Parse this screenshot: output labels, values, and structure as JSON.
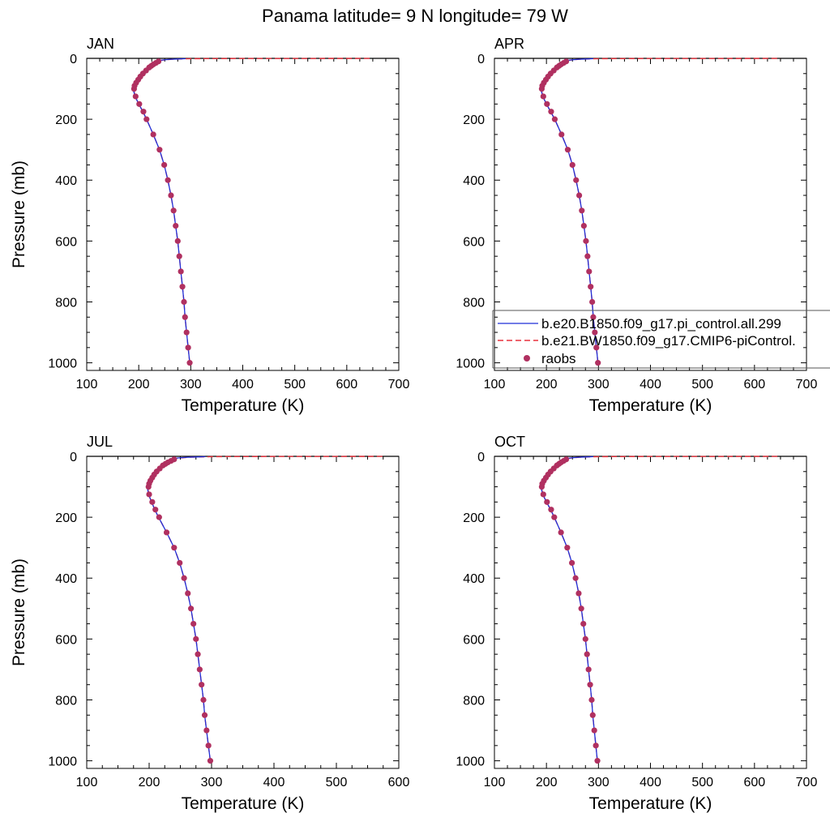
{
  "figure": {
    "title": "Panama  latitude= 9 N longitude= 79 W",
    "colors": {
      "model1": "#1f2fd8",
      "model2": "#e8303c",
      "raobs": "#b03060",
      "axis": "#000000"
    }
  },
  "legend": {
    "entries": [
      {
        "label": "b.e20.B1850.f09_g17.pi_control.all.299",
        "style": "solid-line",
        "color": "#1f2fd8"
      },
      {
        "label": "b.e21.BW1850.f09_g17.CMIP6-piControl.",
        "style": "dashed-line",
        "color": "#e8303c"
      },
      {
        "label": "raobs",
        "style": "marker",
        "color": "#b03060"
      }
    ]
  },
  "chart_data": [
    {
      "type": "line",
      "panel": "JAN",
      "title": "JAN",
      "xlabel": "Temperature (K)",
      "ylabel": "Pressure (mb)",
      "xlim": [
        100,
        700
      ],
      "ylim": [
        1025,
        0
      ],
      "xticks": [
        100,
        200,
        300,
        400,
        500,
        600,
        700
      ],
      "yticks": [
        0,
        200,
        400,
        600,
        800,
        1000
      ],
      "series": [
        {
          "name": "b.e20.B1850.f09_g17.pi_control.all.299",
          "pressure": [
            1000,
            950,
            900,
            850,
            800,
            750,
            700,
            650,
            600,
            550,
            500,
            450,
            400,
            350,
            300,
            250,
            200,
            175,
            150,
            125,
            100,
            90,
            80,
            70,
            60,
            50,
            40,
            30,
            20,
            10,
            7,
            5,
            3,
            2,
            1
          ],
          "temperature": [
            298,
            295,
            292,
            289,
            287,
            284,
            281,
            278,
            275,
            271,
            267,
            262,
            256,
            249,
            240,
            228,
            215,
            208,
            200,
            193,
            189,
            190,
            193,
            197,
            202,
            207,
            213,
            219,
            226,
            235,
            240,
            248,
            262,
            275,
            290
          ]
        },
        {
          "name": "b.e21.BW1850.f09_g17.CMIP6-piControl.",
          "pressure": [
            1000,
            950,
            900,
            850,
            800,
            750,
            700,
            650,
            600,
            550,
            500,
            450,
            400,
            350,
            300,
            250,
            200,
            175,
            150,
            125,
            100,
            90,
            80,
            70,
            60,
            50,
            40,
            30,
            20,
            10,
            7,
            5,
            3,
            2,
            1,
            0.5,
            0.2
          ],
          "temperature": [
            298,
            295,
            292,
            289,
            287,
            284,
            281,
            278,
            275,
            271,
            267,
            262,
            256,
            249,
            240,
            228,
            215,
            208,
            200,
            193,
            190,
            191,
            194,
            198,
            203,
            208,
            214,
            220,
            227,
            236,
            242,
            250,
            265,
            280,
            300,
            400,
            650
          ]
        },
        {
          "name": "raobs",
          "pressure": [
            1000,
            950,
            900,
            850,
            800,
            750,
            700,
            650,
            600,
            550,
            500,
            450,
            400,
            350,
            300,
            250,
            200,
            175,
            150,
            125,
            100,
            90,
            80,
            70,
            60,
            50,
            40,
            30,
            25,
            20,
            15,
            10
          ],
          "temperature": [
            298,
            295,
            292,
            289,
            287,
            284,
            281,
            278,
            275,
            271,
            267,
            262,
            256,
            249,
            240,
            228,
            215,
            209,
            201,
            194,
            191,
            192,
            195,
            199,
            203,
            208,
            214,
            220,
            224,
            228,
            233,
            238
          ]
        }
      ]
    },
    {
      "type": "line",
      "panel": "APR",
      "title": "APR",
      "xlabel": "Temperature (K)",
      "ylabel": "",
      "xlim": [
        100,
        700
      ],
      "ylim": [
        1025,
        0
      ],
      "xticks": [
        100,
        200,
        300,
        400,
        500,
        600,
        700
      ],
      "yticks": [
        0,
        200,
        400,
        600,
        800,
        1000
      ],
      "series": [
        {
          "name": "b.e20.B1850.f09_g17.pi_control.all.299",
          "pressure": [
            1000,
            950,
            900,
            850,
            800,
            750,
            700,
            650,
            600,
            550,
            500,
            450,
            400,
            350,
            300,
            250,
            200,
            175,
            150,
            125,
            100,
            90,
            80,
            70,
            60,
            50,
            40,
            30,
            20,
            10,
            7,
            5,
            3,
            2,
            1
          ],
          "temperature": [
            299,
            296,
            293,
            290,
            288,
            285,
            282,
            279,
            276,
            272,
            268,
            263,
            257,
            250,
            241,
            229,
            216,
            208,
            200,
            193,
            189,
            190,
            193,
            197,
            202,
            207,
            213,
            219,
            226,
            235,
            240,
            248,
            262,
            275,
            290
          ]
        },
        {
          "name": "b.e21.BW1850.f09_g17.CMIP6-piControl.",
          "pressure": [
            1000,
            950,
            900,
            850,
            800,
            750,
            700,
            650,
            600,
            550,
            500,
            450,
            400,
            350,
            300,
            250,
            200,
            175,
            150,
            125,
            100,
            90,
            80,
            70,
            60,
            50,
            40,
            30,
            20,
            10,
            7,
            5,
            3,
            2,
            1,
            0.5,
            0.2
          ],
          "temperature": [
            299,
            296,
            293,
            290,
            288,
            285,
            282,
            279,
            276,
            272,
            268,
            263,
            257,
            250,
            241,
            229,
            216,
            208,
            200,
            193,
            190,
            191,
            194,
            198,
            203,
            208,
            214,
            220,
            227,
            236,
            242,
            250,
            265,
            280,
            300,
            400,
            650
          ]
        },
        {
          "name": "raobs",
          "pressure": [
            1000,
            950,
            900,
            850,
            800,
            750,
            700,
            650,
            600,
            550,
            500,
            450,
            400,
            350,
            300,
            250,
            200,
            175,
            150,
            125,
            100,
            90,
            80,
            70,
            60,
            50,
            40,
            30,
            25,
            20,
            15,
            10
          ],
          "temperature": [
            299,
            296,
            293,
            290,
            288,
            285,
            282,
            279,
            276,
            272,
            268,
            263,
            257,
            250,
            241,
            229,
            216,
            209,
            201,
            194,
            191,
            192,
            195,
            199,
            203,
            208,
            214,
            220,
            224,
            228,
            233,
            238
          ]
        }
      ]
    },
    {
      "type": "line",
      "panel": "JUL",
      "title": "JUL",
      "xlabel": "Temperature (K)",
      "ylabel": "Pressure (mb)",
      "xlim": [
        100,
        600
      ],
      "ylim": [
        1025,
        0
      ],
      "xticks": [
        100,
        200,
        300,
        400,
        500,
        600
      ],
      "yticks": [
        0,
        200,
        400,
        600,
        800,
        1000
      ],
      "series": [
        {
          "name": "b.e20.B1850.f09_g17.pi_control.all.299",
          "pressure": [
            1000,
            950,
            900,
            850,
            800,
            750,
            700,
            650,
            600,
            550,
            500,
            450,
            400,
            350,
            300,
            250,
            200,
            175,
            150,
            125,
            100,
            90,
            80,
            70,
            60,
            50,
            40,
            30,
            20,
            10,
            7,
            5,
            3,
            2,
            1
          ],
          "temperature": [
            298,
            295,
            292,
            289,
            287,
            284,
            281,
            278,
            275,
            271,
            267,
            262,
            256,
            249,
            240,
            228,
            215,
            209,
            204,
            199,
            197,
            198,
            200,
            203,
            207,
            211,
            216,
            221,
            228,
            236,
            241,
            248,
            262,
            275,
            290
          ]
        },
        {
          "name": "b.e21.BW1850.f09_g17.CMIP6-piControl.",
          "pressure": [
            1000,
            950,
            900,
            850,
            800,
            750,
            700,
            650,
            600,
            550,
            500,
            450,
            400,
            350,
            300,
            250,
            200,
            175,
            150,
            125,
            100,
            90,
            80,
            70,
            60,
            50,
            40,
            30,
            20,
            10,
            7,
            5,
            3,
            2,
            1,
            0.5,
            0.2
          ],
          "temperature": [
            298,
            295,
            292,
            289,
            287,
            284,
            281,
            278,
            275,
            271,
            267,
            262,
            256,
            249,
            240,
            228,
            215,
            209,
            204,
            199,
            198,
            199,
            201,
            204,
            208,
            212,
            217,
            222,
            229,
            237,
            243,
            250,
            265,
            280,
            300,
            400,
            575
          ]
        },
        {
          "name": "raobs",
          "pressure": [
            1000,
            950,
            900,
            850,
            800,
            750,
            700,
            650,
            600,
            550,
            500,
            450,
            400,
            350,
            300,
            250,
            200,
            175,
            150,
            125,
            100,
            90,
            80,
            70,
            60,
            50,
            40,
            30,
            25,
            20,
            15,
            10
          ],
          "temperature": [
            298,
            295,
            292,
            289,
            287,
            284,
            281,
            278,
            275,
            271,
            267,
            262,
            256,
            249,
            240,
            228,
            216,
            210,
            205,
            200,
            199,
            200,
            202,
            205,
            208,
            212,
            217,
            222,
            226,
            230,
            235,
            240
          ]
        }
      ]
    },
    {
      "type": "line",
      "panel": "OCT",
      "title": "OCT",
      "xlabel": "Temperature (K)",
      "ylabel": "",
      "xlim": [
        100,
        700
      ],
      "ylim": [
        1025,
        0
      ],
      "xticks": [
        100,
        200,
        300,
        400,
        500,
        600,
        700
      ],
      "yticks": [
        0,
        200,
        400,
        600,
        800,
        1000
      ],
      "series": [
        {
          "name": "b.e20.B1850.f09_g17.pi_control.all.299",
          "pressure": [
            1000,
            950,
            900,
            850,
            800,
            750,
            700,
            650,
            600,
            550,
            500,
            450,
            400,
            350,
            300,
            250,
            200,
            175,
            150,
            125,
            100,
            90,
            80,
            70,
            60,
            50,
            40,
            30,
            20,
            10,
            7,
            5,
            3,
            2,
            1
          ],
          "temperature": [
            298,
            295,
            292,
            289,
            287,
            284,
            281,
            278,
            275,
            271,
            267,
            262,
            256,
            249,
            240,
            228,
            215,
            208,
            200,
            193,
            189,
            190,
            193,
            197,
            202,
            207,
            213,
            219,
            226,
            235,
            240,
            248,
            262,
            275,
            290
          ]
        },
        {
          "name": "b.e21.BW1850.f09_g17.CMIP6-piControl.",
          "pressure": [
            1000,
            950,
            900,
            850,
            800,
            750,
            700,
            650,
            600,
            550,
            500,
            450,
            400,
            350,
            300,
            250,
            200,
            175,
            150,
            125,
            100,
            90,
            80,
            70,
            60,
            50,
            40,
            30,
            20,
            10,
            7,
            5,
            3,
            2,
            1,
            0.5,
            0.2
          ],
          "temperature": [
            298,
            295,
            292,
            289,
            287,
            284,
            281,
            278,
            275,
            271,
            267,
            262,
            256,
            249,
            240,
            228,
            215,
            208,
            200,
            193,
            190,
            191,
            194,
            198,
            203,
            208,
            214,
            220,
            227,
            236,
            242,
            250,
            265,
            280,
            300,
            400,
            650
          ]
        },
        {
          "name": "raobs",
          "pressure": [
            1000,
            950,
            900,
            850,
            800,
            750,
            700,
            650,
            600,
            550,
            500,
            450,
            400,
            350,
            300,
            250,
            200,
            175,
            150,
            125,
            100,
            90,
            80,
            70,
            60,
            50,
            40,
            30,
            25,
            20,
            15,
            10
          ],
          "temperature": [
            298,
            295,
            292,
            289,
            287,
            284,
            281,
            278,
            275,
            271,
            267,
            262,
            256,
            249,
            240,
            228,
            215,
            209,
            201,
            194,
            191,
            192,
            195,
            199,
            203,
            208,
            214,
            220,
            224,
            228,
            233,
            238
          ]
        }
      ]
    }
  ]
}
